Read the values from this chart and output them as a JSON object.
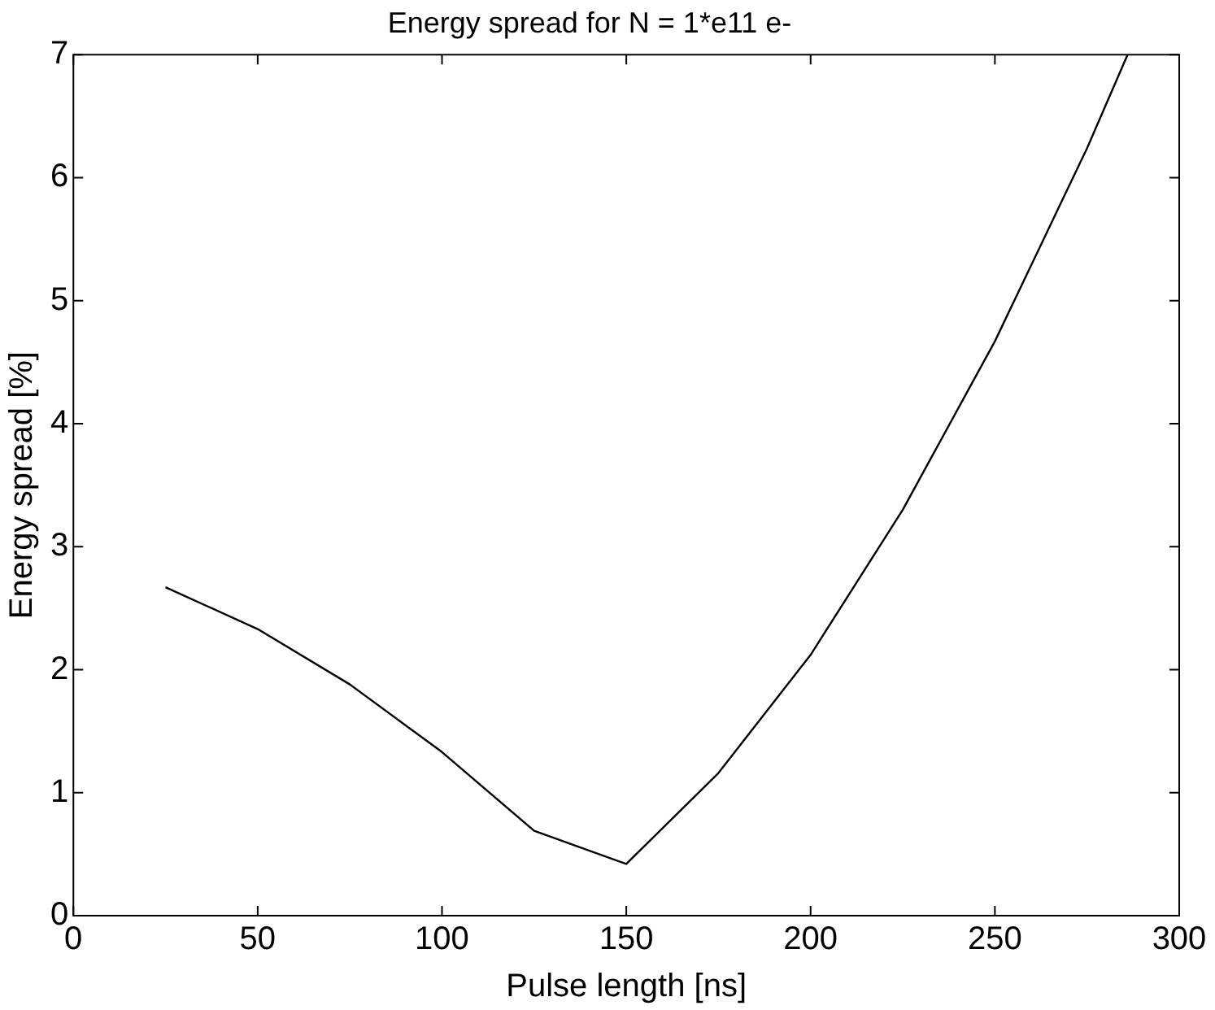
{
  "chart_data": {
    "type": "line",
    "title": "Energy spread for N = 1*e11 e-",
    "xlabel": "Pulse length [ns]",
    "ylabel": "Energy spread [%]",
    "x": [
      25,
      50,
      75,
      100,
      125,
      150,
      175,
      200,
      225,
      250,
      275,
      286
    ],
    "series": [
      {
        "color": "#000000",
        "values": [
          2.67,
          2.33,
          1.88,
          1.33,
          0.69,
          0.42,
          1.16,
          2.12,
          3.3,
          4.67,
          6.24,
          7
        ]
      }
    ],
    "xlim": [
      0,
      300
    ],
    "xticks": [
      0,
      50,
      100,
      150,
      200,
      250,
      300
    ],
    "ylim": [
      0,
      7
    ],
    "yticks": [
      0,
      1,
      2,
      3,
      4,
      5,
      6,
      7
    ],
    "grid": false,
    "legend": false,
    "marker": "none",
    "line_style": "solid"
  }
}
